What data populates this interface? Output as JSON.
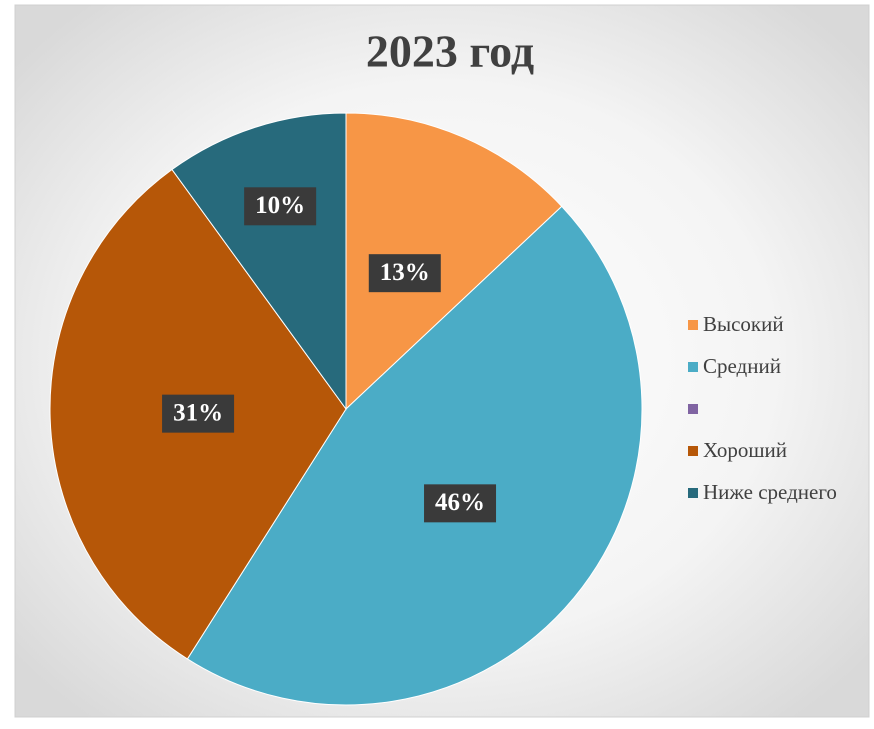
{
  "chart_data": {
    "type": "pie",
    "title": "2023 год",
    "categories": [
      "Высокий",
      "Средний",
      null,
      "Хороший",
      "Ниже среднего"
    ],
    "values": [
      13,
      46,
      0,
      31,
      10
    ],
    "value_labels": [
      "13%",
      "46%",
      null,
      "31%",
      "10%"
    ],
    "colors": [
      "#f79646",
      "#4bacc6",
      "#8064a2",
      "#b65708",
      "#276a7c"
    ],
    "legend": "right"
  }
}
